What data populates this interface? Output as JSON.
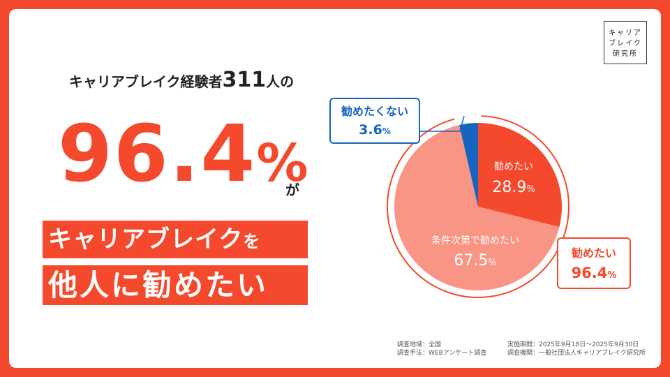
{
  "logo": {
    "lines": [
      "キャリア",
      "ブレイク",
      "研究所"
    ]
  },
  "headline": {
    "prefix": "キャリアブレイク経験者",
    "count": "311",
    "suffix": "人の"
  },
  "big": {
    "value": "96.4",
    "unit": "%"
  },
  "particle": "が",
  "banner": {
    "line1_main": "キャリアブレイク",
    "line1_particle": "を",
    "line2": "他人に勧めたい"
  },
  "colors": {
    "accent": "#f4492c",
    "light": "#f99585",
    "blue": "#1565c0"
  },
  "chart_data": {
    "type": "pie",
    "slices": [
      {
        "label": "勧めたい",
        "value": 28.9,
        "display": "28.9",
        "unit": "%",
        "color": "#f4492c"
      },
      {
        "label": "条件次第で勧めたい",
        "value": 67.5,
        "display": "67.5",
        "unit": "%",
        "color": "#f99585"
      },
      {
        "label": "勧めたくない",
        "value": 3.6,
        "display": "3.6",
        "unit": "%",
        "color": "#1565c0"
      }
    ],
    "combined": {
      "label": "勧めたい",
      "display": "96.4",
      "unit": "%"
    }
  },
  "footer": {
    "area": "調査地域：全国",
    "method": "調査手法：WEBアンケート調査",
    "period": "実施期間：2025年9月18日〜2025年9月30日",
    "org": "調査機関：一般社団法人キャリアブレイク研究所"
  }
}
